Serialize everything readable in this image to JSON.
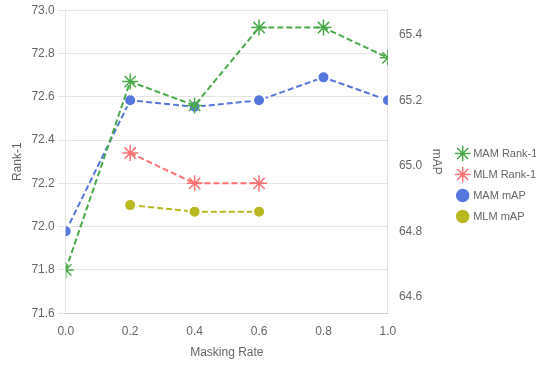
{
  "chart_data": {
    "type": "line",
    "xlabel": "Masking Rate",
    "ylabel": "Rank-1",
    "y2label": "mAP",
    "xlim": [
      0.0,
      1.0
    ],
    "xticks": [
      {
        "value": 0.0,
        "label": "0.0"
      },
      0.2,
      0.4,
      0.6,
      0.8,
      {
        "value": 1.0,
        "label": "1.0"
      }
    ],
    "ylim": [
      71.6,
      73.0
    ],
    "yticks": [
      71.6,
      71.8,
      {
        "value": 72.0,
        "label": "72.0"
      },
      72.2,
      72.4,
      72.6,
      72.8,
      {
        "value": 73.0,
        "label": "73.0"
      }
    ],
    "y2lim": [
      64.55,
      65.475
    ],
    "y2ticks": [
      64.6,
      64.8,
      {
        "value": 65.0,
        "label": "65.0"
      },
      65.2,
      65.4
    ],
    "grid": "y",
    "legend": "right",
    "series": [
      {
        "name": "MAM Rank-1",
        "color": "#4aaa4a",
        "marker": "star",
        "line_style": "dashed",
        "axis": "y",
        "x": [
          0.0,
          0.2,
          0.4,
          0.6,
          0.8,
          1.0
        ],
        "values": [
          71.8,
          72.67,
          72.56,
          72.92,
          72.92,
          72.78
        ]
      },
      {
        "name": "MLM Rank-1",
        "color": "#ff7070",
        "marker": "star",
        "line_style": "dashed",
        "axis": "y",
        "x": [
          0.2,
          0.4,
          0.6
        ],
        "values": [
          72.34,
          72.2,
          72.2
        ]
      },
      {
        "name": "MAM mAP",
        "color": "#5577dd",
        "marker": "circle",
        "line_style": "dashed",
        "axis": "y2",
        "x": [
          0.0,
          0.2,
          0.4,
          0.6,
          0.8,
          1.0
        ],
        "values": [
          64.8,
          65.2,
          65.18,
          65.2,
          65.27,
          65.2
        ]
      },
      {
        "name": "MLM mAP",
        "color": "#b8b820",
        "marker": "circle",
        "line_style": "dashed",
        "axis": "y2",
        "x": [
          0.2,
          0.4,
          0.6
        ],
        "values": [
          64.88,
          64.86,
          64.86
        ]
      }
    ]
  }
}
